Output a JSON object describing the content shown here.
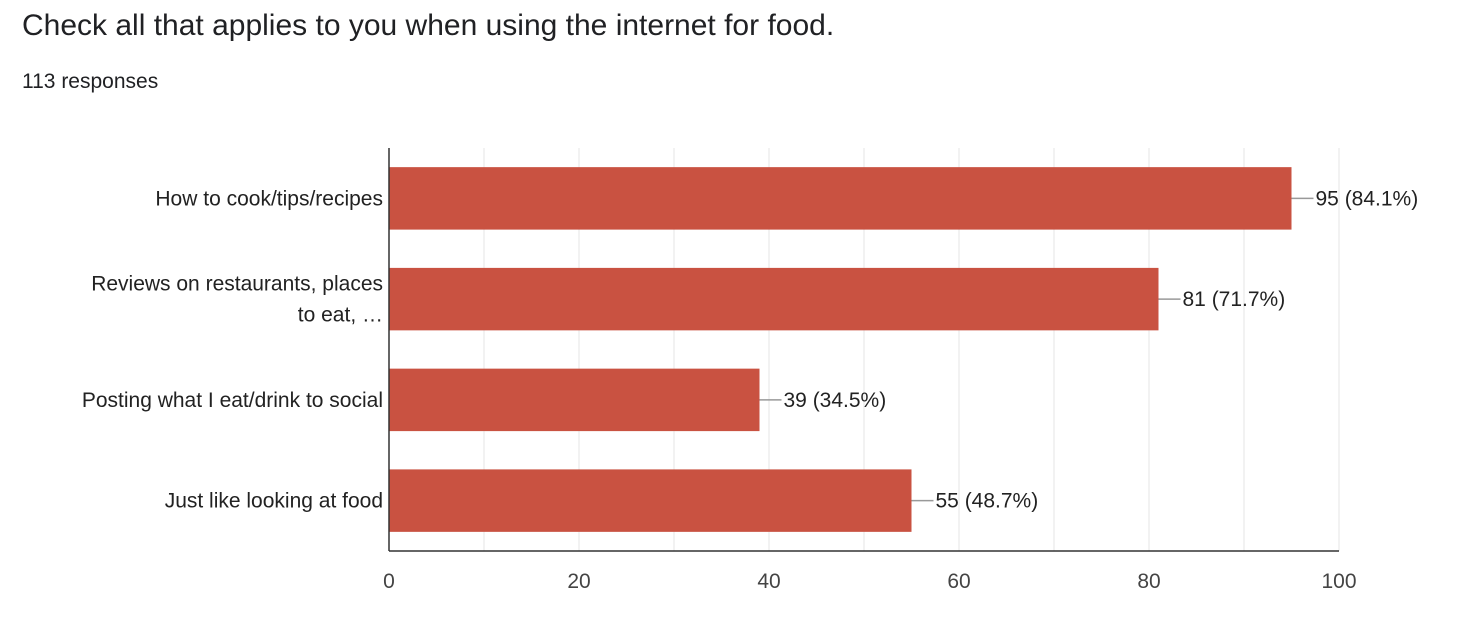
{
  "header": {
    "title": "Check all that applies to you when using the internet for food.",
    "responses": "113 responses"
  },
  "chart_data": {
    "type": "bar",
    "orientation": "horizontal",
    "categories": [
      [
        "How to cook/tips/recipes"
      ],
      [
        "Reviews on restaurants, places",
        "to eat, …"
      ],
      [
        "Posting what I eat/drink to social"
      ],
      [
        "Just like looking at food"
      ]
    ],
    "values": [
      95,
      81,
      39,
      55
    ],
    "data_labels": [
      "95 (84.1%)",
      "81 (71.7%)",
      "39 (34.5%)",
      "55 (48.7%)"
    ],
    "xlim": [
      0,
      100
    ],
    "x_ticks": [
      0,
      20,
      40,
      60,
      80,
      100
    ],
    "grid": true,
    "bar_color": "#c95241",
    "grid_color": "#e6e6e6",
    "axis_color": "#333333"
  }
}
